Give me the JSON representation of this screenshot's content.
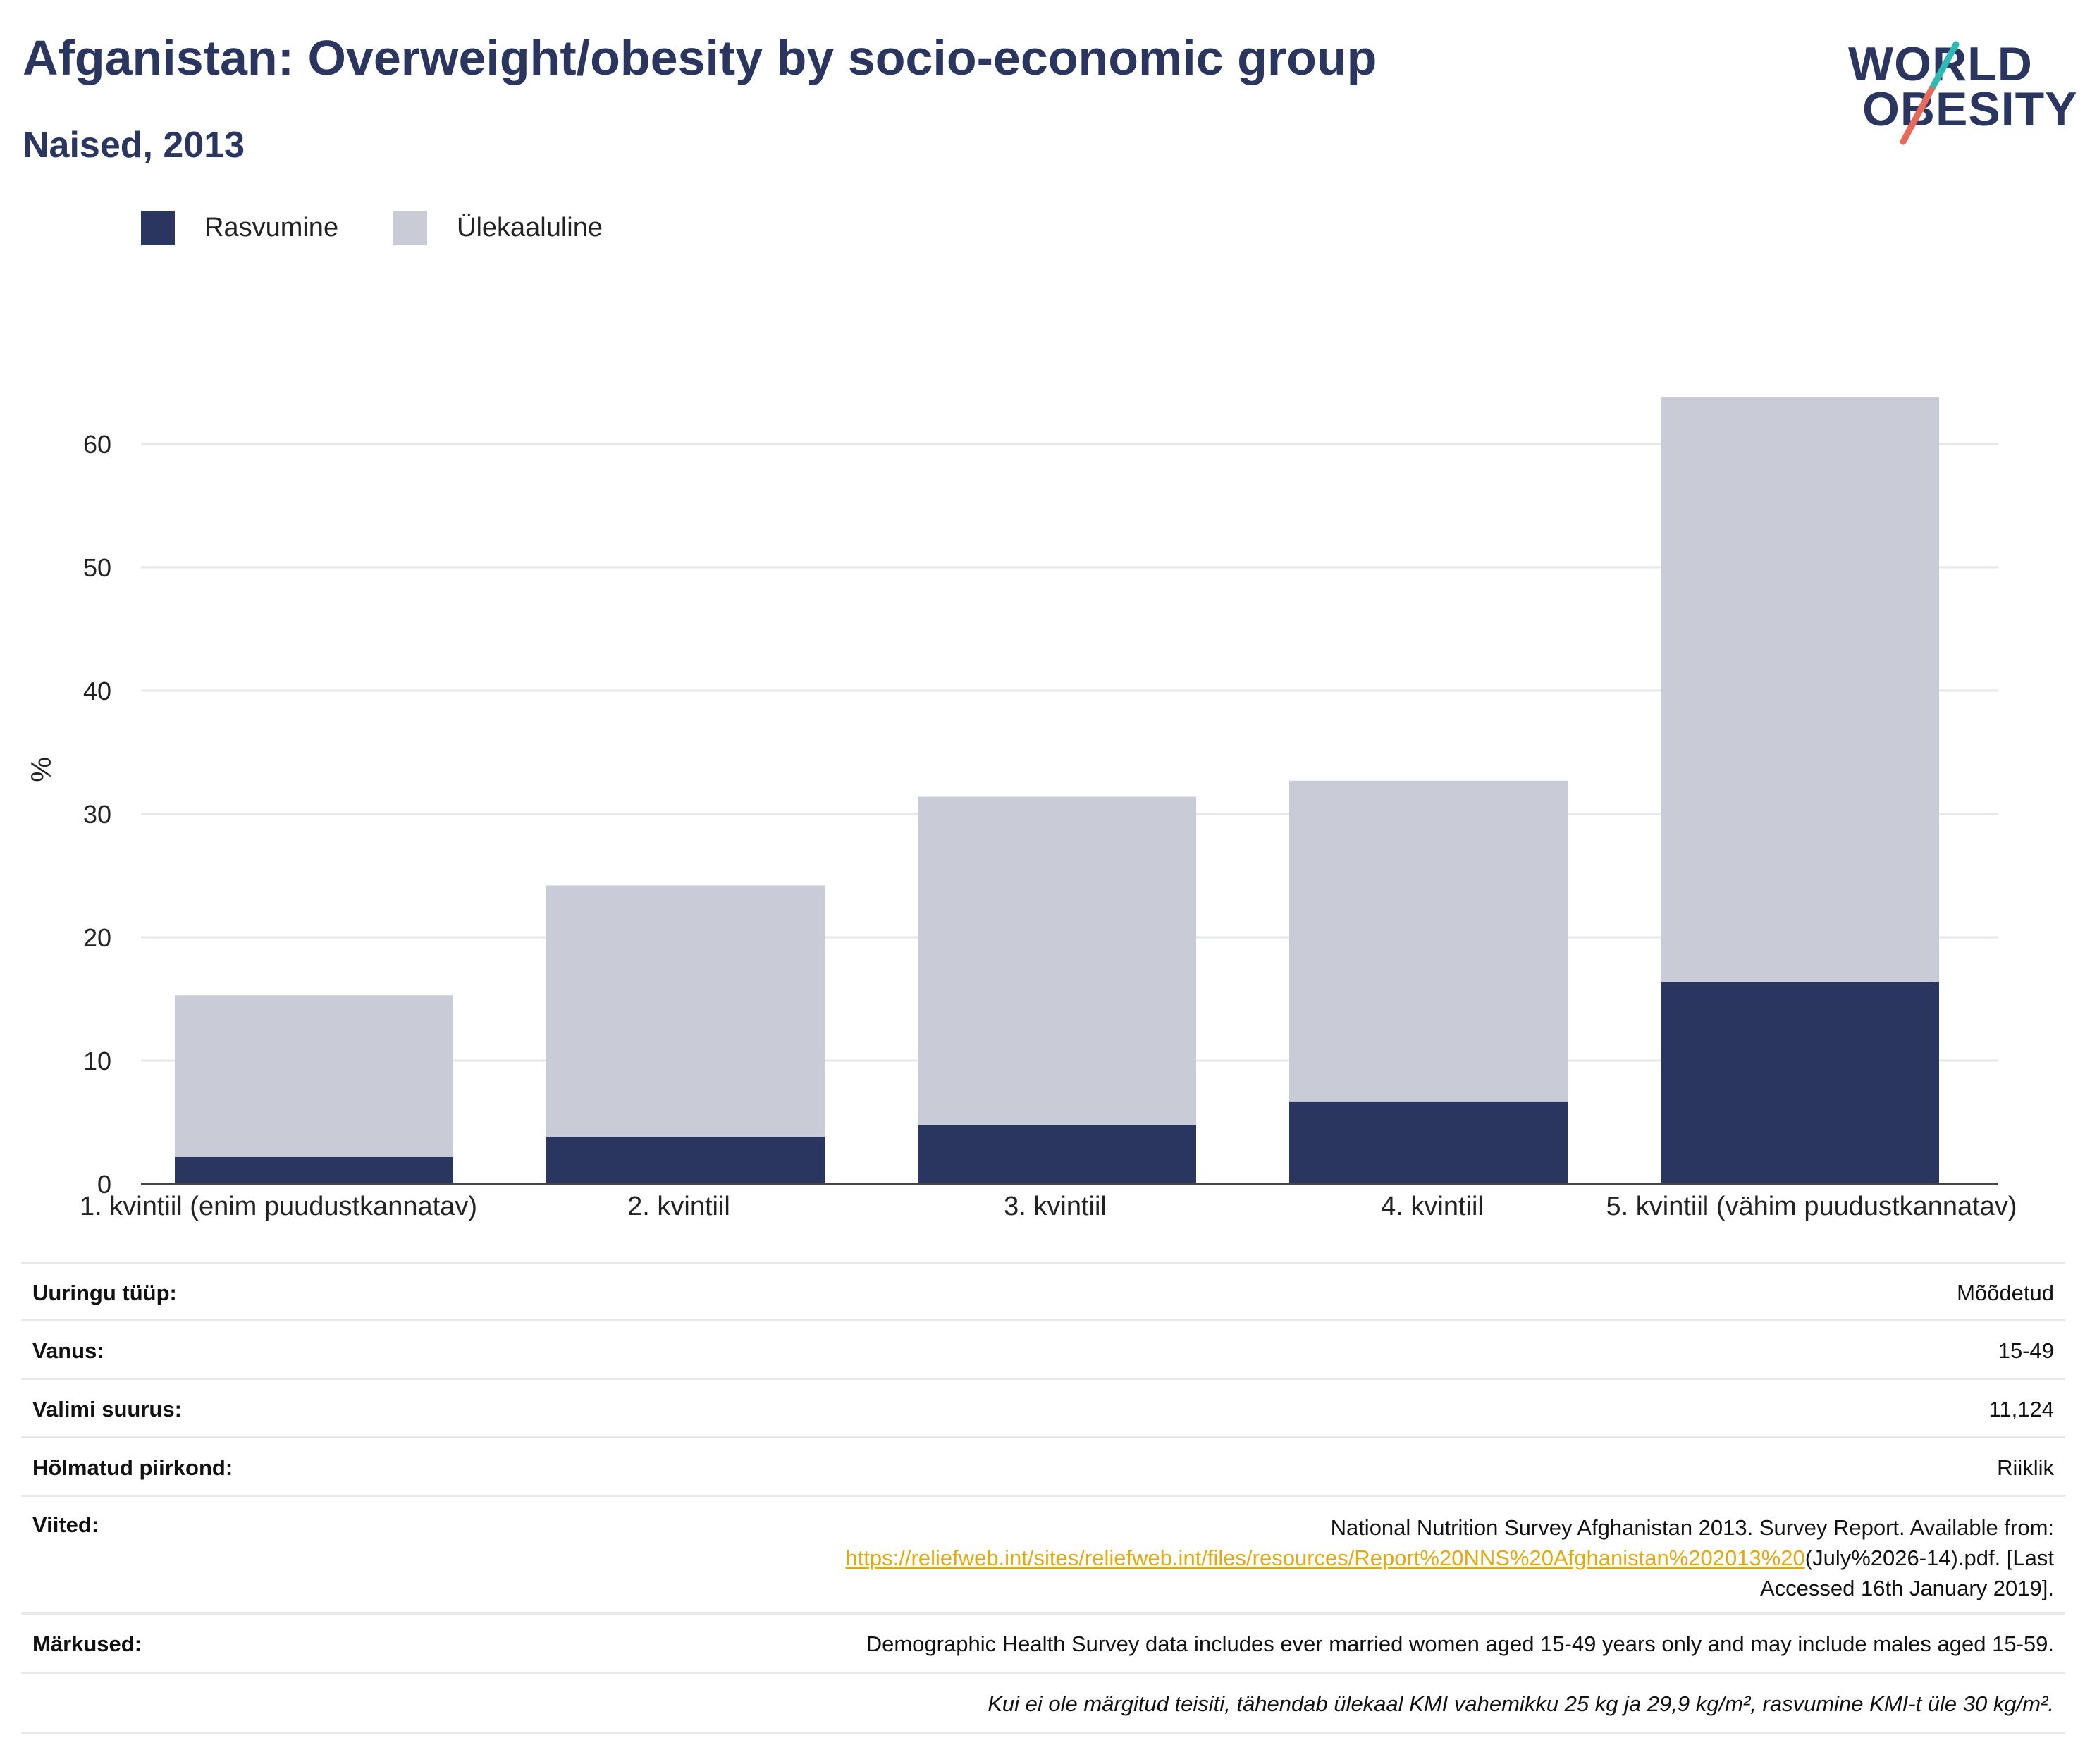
{
  "header": {
    "title": "Afganistan: Overweight/obesity by socio-economic group",
    "subtitle": "Naised, 2013"
  },
  "logo": {
    "line1": "WORLD",
    "line2": "OBESITY"
  },
  "legend": [
    {
      "label": "Rasvumine",
      "color": "#2b3660"
    },
    {
      "label": "Ülekaaluline",
      "color": "#c9cbd7"
    }
  ],
  "chart_data": {
    "type": "bar",
    "stacked": true,
    "categories": [
      "1. kvintiil (enim puudustkannatav)",
      "2. kvintiil",
      "3. kvintiil",
      "4. kvintiil",
      "5. kvintiil (vähim puudustkannatav)"
    ],
    "series": [
      {
        "name": "Rasvumine",
        "values": [
          2.2,
          3.8,
          4.8,
          6.7,
          16.4
        ],
        "color": "#2b3660"
      },
      {
        "name": "Ülekaaluline",
        "values": [
          13.1,
          20.4,
          26.6,
          26.0,
          47.4
        ],
        "color": "#c9cbd7"
      }
    ],
    "ylabel": "%",
    "xlabel": "",
    "ylim": [
      0,
      70
    ],
    "yticks": [
      0,
      10,
      20,
      30,
      40,
      50,
      60
    ],
    "grid": true,
    "legend_position": "top-left"
  },
  "info": [
    {
      "key": "Uuringu tüüp:",
      "value": "Mõõdetud"
    },
    {
      "key": "Vanus:",
      "value": "15-49"
    },
    {
      "key": "Valimi suurus:",
      "value": "11,124"
    },
    {
      "key": "Hõlmatud piirkond:",
      "value": "Riiklik"
    },
    {
      "key": "Viited:",
      "value_pre": "National Nutrition Survey Afghanistan 2013. Survey Report. Available from:",
      "link": "https://reliefweb.int/sites/reliefweb.int/files/resources/Report%20NNS%20Afghanistan%202013%20",
      "value_post": "(July%2026-14).pdf. [Last",
      "value_end": "Accessed 16th January 2019]."
    },
    {
      "key": "Märkused:",
      "value": "Demographic Health Survey data includes ever married women aged 15-49 years only and may include males aged 15-59."
    }
  ],
  "footnote": "Kui ei ole märgitud teisiti, tähendab ülekaal KMI vahemikku 25 kg ja 29,9 kg/m², rasvumine KMI-t üle 30 kg/m²."
}
